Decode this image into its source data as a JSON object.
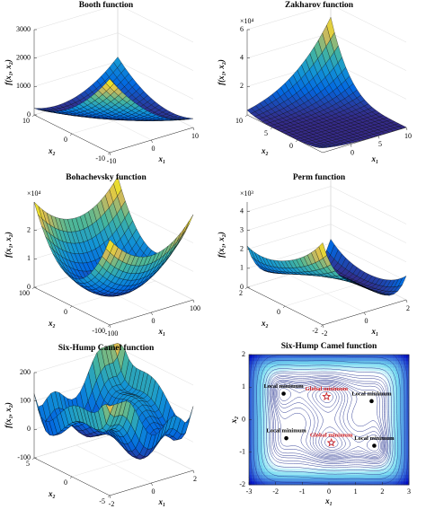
{
  "panels": [
    {
      "type": "surface",
      "title": "Booth function",
      "xlabel": "x₁",
      "ylabel": "x₂",
      "zlabel": "f(x₁, x₂)",
      "xlim": [
        -10,
        10
      ],
      "xticks": [
        -10,
        0,
        10
      ],
      "ylim": [
        -10,
        10
      ],
      "yticks": [
        -10,
        0,
        10
      ],
      "zlim": [
        0,
        3000
      ],
      "zticks": [
        0,
        1000,
        2000,
        3000
      ]
    },
    {
      "type": "surface",
      "title": "Zakharov function",
      "xlabel": "x₁",
      "ylabel": "x₂",
      "zlabel": "f(x₁, x₂)",
      "z_multiplier": "×10⁴",
      "xlim": [
        -5,
        10
      ],
      "xticks": [
        0,
        5,
        10
      ],
      "ylim": [
        -5,
        10
      ],
      "yticks": [
        0,
        5,
        10
      ],
      "zlim": [
        0,
        60000
      ],
      "zticks": [
        {
          "value": 20000,
          "label": "2"
        },
        {
          "value": 40000,
          "label": "4"
        },
        {
          "value": 60000,
          "label": "6"
        }
      ]
    },
    {
      "type": "surface",
      "title": "Bohachevsky function",
      "xlabel": "x₁",
      "ylabel": "x₂",
      "zlabel": "f(x₁, x₂)",
      "z_multiplier": "×10⁴",
      "xlim": [
        -100,
        100
      ],
      "xticks": [
        -100,
        0,
        100
      ],
      "ylim": [
        -100,
        100
      ],
      "yticks": [
        -100,
        0,
        100
      ],
      "zlim": [
        0,
        30000
      ],
      "zticks": [
        0,
        {
          "value": 10000,
          "label": "1"
        },
        {
          "value": 20000,
          "label": "2"
        }
      ]
    },
    {
      "type": "surface",
      "title": "Perm function",
      "xlabel": "x₁",
      "ylabel": "x₂",
      "zlabel": "f(x₁, x₂)",
      "z_multiplier": "×10³",
      "xlim": [
        -2,
        2
      ],
      "xticks": [
        -2,
        0,
        2
      ],
      "ylim": [
        -2,
        2
      ],
      "yticks": [
        -2,
        0,
        2
      ],
      "zlim": [
        0,
        4500
      ],
      "zticks": [
        0,
        {
          "value": 1000,
          "label": "1"
        },
        {
          "value": 2000,
          "label": "2"
        },
        {
          "value": 3000,
          "label": "3"
        },
        {
          "value": 4000,
          "label": "4"
        }
      ]
    },
    {
      "type": "surface",
      "title": "Six-Hump Camel function",
      "xlabel": "x₁",
      "ylabel": "x₂",
      "zlabel": "f(x₁, x₂)",
      "xlim": [
        -2,
        2
      ],
      "xticks": [
        -2,
        0,
        2
      ],
      "ylim": [
        -5,
        5
      ],
      "yticks": [
        -5,
        0,
        5
      ],
      "zlim": [
        -100,
        200
      ],
      "zticks": [
        -100,
        0,
        100,
        200
      ]
    },
    {
      "type": "contour",
      "title": "Six-Hump Camel function",
      "xlabel": "x₁",
      "ylabel": "x₂",
      "xlim": [
        -3,
        3
      ],
      "xticks": [
        -3,
        -2,
        -1,
        0,
        1,
        2,
        3
      ],
      "ylim": [
        -2,
        2
      ],
      "yticks": [
        -2,
        -1,
        0,
        1,
        2
      ],
      "points": [
        {
          "x": -1.7,
          "y": 0.8,
          "label": "Local minimum",
          "color": "#000000",
          "marker": "circle"
        },
        {
          "x": -0.09,
          "y": 0.71,
          "label": "Global minimum",
          "color": "#d42020",
          "marker": "star"
        },
        {
          "x": 1.6,
          "y": 0.57,
          "label": "Local minimum",
          "color": "#000000",
          "marker": "circle"
        },
        {
          "x": -1.6,
          "y": -0.57,
          "label": "Local minimum",
          "color": "#000000",
          "marker": "circle"
        },
        {
          "x": 0.09,
          "y": -0.71,
          "label": "Global minimum",
          "color": "#d42020",
          "marker": "star"
        },
        {
          "x": 1.7,
          "y": -0.8,
          "label": "Local minimum",
          "color": "#000000",
          "marker": "circle"
        }
      ]
    }
  ]
}
